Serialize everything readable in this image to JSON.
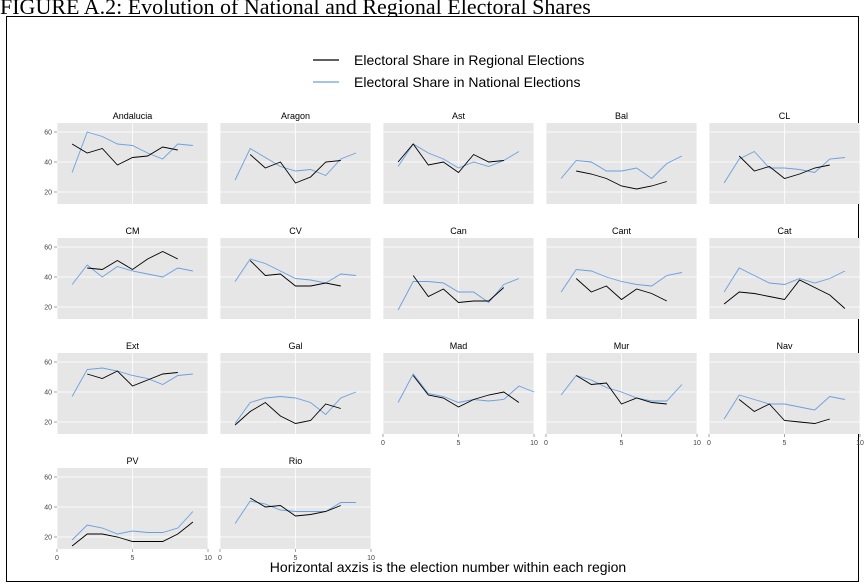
{
  "figure_title": "FIGURE A.2: Evolution of National and Regional Electoral Shares",
  "footer_note": "Horizontal axzis is the election number within each region",
  "legend": {
    "placement": "top-center",
    "items": [
      {
        "label": "Electoral Share in Regional Elections",
        "color": "#000000"
      },
      {
        "label": "Electoral Share in National Elections",
        "color": "#6a9fe0"
      }
    ]
  },
  "chart_data": {
    "type": "line",
    "layout": "small-multiples",
    "xlim": [
      0,
      10
    ],
    "ylim": [
      12,
      66
    ],
    "x_ticks": [
      0,
      5,
      10
    ],
    "y_ticks": [
      20,
      40,
      60
    ],
    "grid": true,
    "panels": [
      {
        "title": "Andalucia",
        "regional": {
          "x": [
            1,
            2,
            3,
            4,
            5,
            6,
            7,
            8
          ],
          "y": [
            52,
            46,
            49,
            38,
            43,
            44,
            50,
            48
          ]
        },
        "national": {
          "x": [
            1,
            2,
            3,
            4,
            5,
            6,
            7,
            8,
            9
          ],
          "y": [
            33,
            60,
            57,
            52,
            51,
            46,
            42,
            52,
            51
          ]
        }
      },
      {
        "title": "Aragon",
        "regional": {
          "x": [
            2,
            3,
            4,
            5,
            6,
            7,
            8
          ],
          "y": [
            45,
            36,
            40,
            26,
            30,
            40,
            41
          ]
        },
        "national": {
          "x": [
            1,
            2,
            3,
            4,
            5,
            6,
            7,
            8,
            9
          ],
          "y": [
            28,
            49,
            43,
            37,
            34,
            35,
            31,
            42,
            46
          ]
        }
      },
      {
        "title": "Ast",
        "regional": {
          "x": [
            1,
            2,
            3,
            4,
            5,
            6,
            7,
            8
          ],
          "y": [
            40,
            52,
            38,
            40,
            33,
            45,
            40,
            41
          ]
        },
        "national": {
          "x": [
            1,
            2,
            3,
            4,
            5,
            6,
            7,
            8,
            9
          ],
          "y": [
            37,
            52,
            46,
            42,
            36,
            40,
            37,
            41,
            47
          ]
        }
      },
      {
        "title": "Bal",
        "regional": {
          "x": [
            2,
            3,
            4,
            5,
            6,
            7,
            8
          ],
          "y": [
            34,
            32,
            29,
            24,
            22,
            24,
            27
          ]
        },
        "national": {
          "x": [
            1,
            2,
            3,
            4,
            5,
            6,
            7,
            8,
            9
          ],
          "y": [
            29,
            41,
            40,
            34,
            34,
            36,
            29,
            39,
            44
          ]
        }
      },
      {
        "title": "CL",
        "regional": {
          "x": [
            2,
            3,
            4,
            5,
            6,
            7,
            8
          ],
          "y": [
            44,
            34,
            37,
            29,
            32,
            36,
            38
          ]
        },
        "national": {
          "x": [
            1,
            2,
            3,
            4,
            5,
            6,
            7,
            8,
            9
          ],
          "y": [
            26,
            42,
            47,
            36,
            36,
            35,
            33,
            42,
            43
          ]
        }
      },
      {
        "title": "CM",
        "regional": {
          "x": [
            2,
            3,
            4,
            5,
            6,
            7,
            8
          ],
          "y": [
            46,
            45,
            51,
            45,
            52,
            57,
            52
          ]
        },
        "national": {
          "x": [
            1,
            2,
            3,
            4,
            5,
            6,
            7,
            8,
            9
          ],
          "y": [
            35,
            48,
            40,
            47,
            44,
            42,
            40,
            46,
            44
          ]
        }
      },
      {
        "title": "CV",
        "regional": {
          "x": [
            2,
            3,
            4,
            5,
            6,
            7,
            8
          ],
          "y": [
            51,
            41,
            42,
            34,
            34,
            36,
            34
          ]
        },
        "national": {
          "x": [
            1,
            2,
            3,
            4,
            5,
            6,
            7,
            8,
            9
          ],
          "y": [
            37,
            52,
            49,
            44,
            39,
            38,
            36,
            42,
            41
          ]
        }
      },
      {
        "title": "Can",
        "regional": {
          "x": [
            2,
            3,
            4,
            5,
            6,
            7,
            8
          ],
          "y": [
            41,
            27,
            32,
            23,
            24,
            24,
            33
          ]
        },
        "national": {
          "x": [
            1,
            2,
            3,
            4,
            5,
            6,
            7,
            8,
            9
          ],
          "y": [
            18,
            37,
            37,
            36,
            30,
            30,
            23,
            35,
            39
          ]
        }
      },
      {
        "title": "Cant",
        "regional": {
          "x": [
            2,
            3,
            4,
            5,
            6,
            7,
            8
          ],
          "y": [
            39,
            30,
            34,
            25,
            32,
            29,
            24
          ]
        },
        "national": {
          "x": [
            1,
            2,
            3,
            4,
            5,
            6,
            7,
            8,
            9
          ],
          "y": [
            30,
            45,
            44,
            40,
            37,
            35,
            34,
            41,
            43
          ]
        }
      },
      {
        "title": "Cat",
        "regional": {
          "x": [
            1,
            2,
            3,
            4,
            5,
            6,
            7,
            8,
            9
          ],
          "y": [
            22,
            30,
            29,
            27,
            25,
            38,
            33,
            28,
            19
          ]
        },
        "national": {
          "x": [
            1,
            2,
            3,
            4,
            5,
            6,
            7,
            8,
            9
          ],
          "y": [
            30,
            46,
            41,
            36,
            35,
            39,
            36,
            39,
            44
          ]
        }
      },
      {
        "title": "Ext",
        "regional": {
          "x": [
            2,
            3,
            4,
            5,
            6,
            7,
            8
          ],
          "y": [
            52,
            49,
            54,
            44,
            48,
            52,
            53
          ]
        },
        "national": {
          "x": [
            1,
            2,
            3,
            4,
            5,
            6,
            7,
            8,
            9
          ],
          "y": [
            37,
            55,
            56,
            54,
            51,
            49,
            45,
            51,
            52
          ]
        }
      },
      {
        "title": "Gal",
        "regional": {
          "x": [
            1,
            2,
            3,
            4,
            5,
            6,
            7,
            8
          ],
          "y": [
            18,
            27,
            33,
            24,
            19,
            21,
            32,
            29
          ]
        },
        "national": {
          "x": [
            1,
            2,
            3,
            4,
            5,
            6,
            7,
            8,
            9
          ],
          "y": [
            19,
            33,
            36,
            37,
            36,
            33,
            25,
            36,
            40
          ]
        }
      },
      {
        "title": "Mad",
        "regional": {
          "x": [
            2,
            3,
            4,
            5,
            6,
            7,
            8,
            9
          ],
          "y": [
            51,
            38,
            36,
            30,
            35,
            38,
            40,
            33
          ]
        },
        "national": {
          "x": [
            1,
            2,
            3,
            4,
            5,
            6,
            7,
            8,
            9,
            10
          ],
          "y": [
            33,
            52,
            39,
            37,
            33,
            35,
            34,
            35,
            44,
            40
          ]
        }
      },
      {
        "title": "Mur",
        "regional": {
          "x": [
            2,
            3,
            4,
            5,
            6,
            7,
            8
          ],
          "y": [
            51,
            45,
            46,
            32,
            36,
            33,
            32
          ]
        },
        "national": {
          "x": [
            1,
            2,
            3,
            4,
            5,
            6,
            7,
            8,
            9
          ],
          "y": [
            38,
            51,
            48,
            43,
            40,
            36,
            34,
            34,
            45
          ]
        }
      },
      {
        "title": "Nav",
        "regional": {
          "x": [
            2,
            3,
            4,
            5,
            6,
            7,
            8
          ],
          "y": [
            35,
            27,
            32,
            21,
            20,
            19,
            22
          ]
        },
        "national": {
          "x": [
            1,
            2,
            3,
            4,
            5,
            6,
            7,
            8,
            9
          ],
          "y": [
            22,
            38,
            35,
            32,
            32,
            30,
            28,
            37,
            35
          ]
        }
      },
      {
        "title": "PV",
        "regional": {
          "x": [
            1,
            2,
            3,
            4,
            5,
            6,
            7,
            8,
            9
          ],
          "y": [
            14,
            22,
            22,
            20,
            17,
            17,
            17,
            22,
            30
          ]
        },
        "national": {
          "x": [
            1,
            2,
            3,
            4,
            5,
            6,
            7,
            8,
            9
          ],
          "y": [
            18,
            28,
            26,
            22,
            24,
            23,
            23,
            26,
            37
          ]
        }
      },
      {
        "title": "Rio",
        "regional": {
          "x": [
            2,
            3,
            4,
            5,
            6,
            7,
            8
          ],
          "y": [
            46,
            40,
            41,
            34,
            35,
            37,
            41
          ]
        },
        "national": {
          "x": [
            1,
            2,
            3,
            4,
            5,
            6,
            7,
            8,
            9
          ],
          "y": [
            29,
            44,
            42,
            38,
            37,
            37,
            37,
            43,
            43
          ]
        }
      }
    ]
  }
}
